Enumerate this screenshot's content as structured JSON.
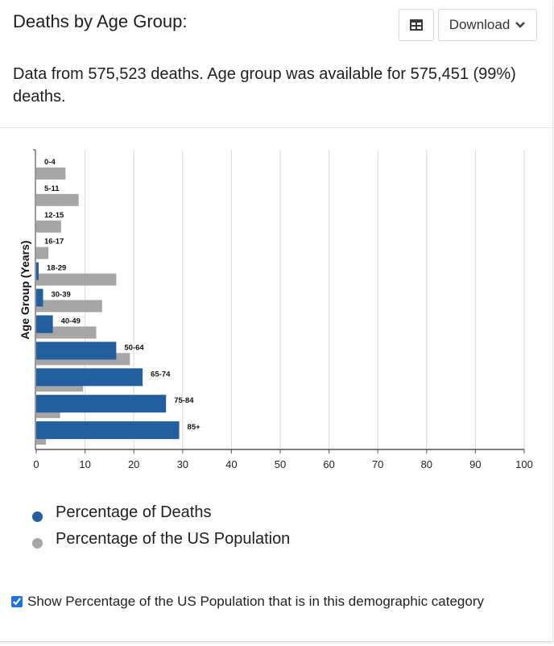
{
  "header": {
    "title": "Deaths by Age Group:",
    "download_label": "Download"
  },
  "summary": "Data from 575,523 deaths. Age group was available for 575,451 (99%) deaths.",
  "legend": [
    {
      "label": "Percentage of Deaths",
      "color": "#215f9f"
    },
    {
      "label": "Percentage of the US Population",
      "color": "#a6a6a6"
    }
  ],
  "toggle": {
    "label": "Show Percentage of the US Population that is in this demographic category",
    "checked": true
  },
  "icons": {
    "table": "table-icon",
    "download": "chevron-down-icon",
    "checkbox": "checkbox-icon"
  },
  "chart_data": {
    "type": "bar",
    "orientation": "horizontal",
    "ylabel": "Age Group (Years)",
    "xlabel": "",
    "xlim": [
      0,
      100
    ],
    "xticks": [
      0,
      10,
      20,
      30,
      40,
      50,
      60,
      70,
      80,
      90,
      100
    ],
    "grid": true,
    "categories": [
      "0-4",
      "5-11",
      "12-15",
      "16-17",
      "18-29",
      "30-39",
      "40-49",
      "50-64",
      "65-74",
      "75-84",
      "85+"
    ],
    "series": [
      {
        "name": "Percentage of Deaths",
        "color": "#215f9f",
        "values": [
          0,
          0,
          0,
          0,
          0.5,
          1.4,
          3.4,
          16.4,
          21.8,
          26.6,
          29.3
        ]
      },
      {
        "name": "Percentage of the US Population",
        "color": "#a6a6a6",
        "values": [
          6.0,
          8.7,
          5.1,
          2.5,
          16.4,
          13.5,
          12.3,
          19.2,
          9.6,
          4.9,
          2.0
        ]
      }
    ]
  }
}
